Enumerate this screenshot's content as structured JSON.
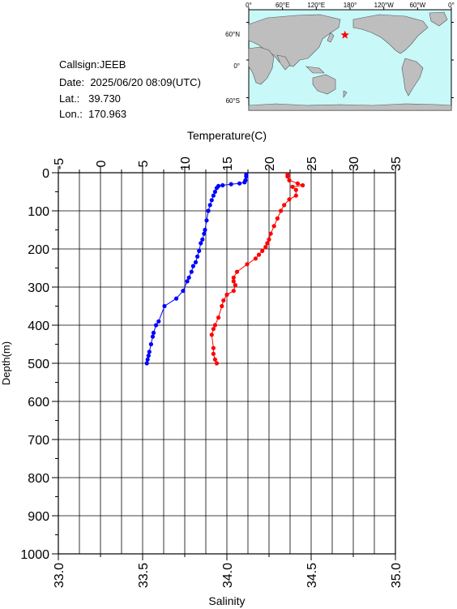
{
  "station": {
    "callsign_label": "Callsign:",
    "callsign": "JEEB",
    "date_label": "Date:",
    "date": "2025/06/20 08:09(UTC)",
    "lat_label": "Lat.:",
    "lat": "39.730",
    "lon_label": "Lon.:",
    "lon": "170.963"
  },
  "map": {
    "top_labels": [
      "0°",
      "60°E",
      "120°E",
      "180°",
      "120°W",
      "60°W",
      "0°"
    ],
    "left_labels": [
      "60°N",
      "0°",
      "60°S"
    ],
    "ocean_color": "#c8f8f8",
    "land_color": "#bebebe",
    "marker": "star",
    "marker_color": "#ff0000",
    "marker_lon": 170.963,
    "marker_lat": 39.73
  },
  "chart_data": {
    "type": "line",
    "ylabel": "Depth(m)",
    "ylim": [
      0,
      1000
    ],
    "yticks": [
      "0",
      "100",
      "200",
      "300",
      "400",
      "500",
      "600",
      "700",
      "800",
      "900",
      "1000"
    ],
    "x_top_label": "Temperature(C)",
    "x_top_lim": [
      -5,
      35
    ],
    "x_top_ticks": [
      "-5",
      "0",
      "5",
      "10",
      "15",
      "20",
      "25",
      "30",
      "35"
    ],
    "x_bottom_label": "Salinity",
    "x_bottom_lim": [
      33.0,
      35.0
    ],
    "x_bottom_ticks": [
      "33.0",
      "33.5",
      "34.0",
      "34.5",
      "35.0"
    ],
    "grid": true,
    "series": [
      {
        "axis": "temperature",
        "color": "#0000ff",
        "points": [
          [
            17.3,
            5
          ],
          [
            17.3,
            10
          ],
          [
            17.2,
            20
          ],
          [
            17.1,
            25
          ],
          [
            16.5,
            28
          ],
          [
            15.5,
            30
          ],
          [
            14.5,
            33
          ],
          [
            14.0,
            35
          ],
          [
            13.8,
            40
          ],
          [
            13.6,
            50
          ],
          [
            13.4,
            60
          ],
          [
            13.2,
            72
          ],
          [
            13.0,
            85
          ],
          [
            12.8,
            100
          ],
          [
            12.6,
            125
          ],
          [
            12.4,
            150
          ],
          [
            12.3,
            160
          ],
          [
            12.1,
            175
          ],
          [
            11.9,
            185
          ],
          [
            11.7,
            205
          ],
          [
            11.5,
            220
          ],
          [
            11.3,
            235
          ],
          [
            11.0,
            245
          ],
          [
            10.8,
            260
          ],
          [
            10.5,
            275
          ],
          [
            10.3,
            285
          ],
          [
            9.8,
            310
          ],
          [
            9.0,
            330
          ],
          [
            7.6,
            350
          ],
          [
            6.9,
            390
          ],
          [
            6.6,
            400
          ],
          [
            6.3,
            420
          ],
          [
            6.2,
            430
          ],
          [
            6.0,
            450
          ],
          [
            5.8,
            470
          ],
          [
            5.7,
            480
          ],
          [
            5.6,
            490
          ],
          [
            5.5,
            500
          ]
        ]
      },
      {
        "axis": "salinity",
        "color": "#ff0000",
        "points": [
          [
            34.36,
            5
          ],
          [
            34.36,
            10
          ],
          [
            34.37,
            20
          ],
          [
            34.42,
            28
          ],
          [
            34.45,
            33
          ],
          [
            34.39,
            37
          ],
          [
            34.41,
            45
          ],
          [
            34.41,
            60
          ],
          [
            34.37,
            70
          ],
          [
            34.34,
            85
          ],
          [
            34.32,
            100
          ],
          [
            34.3,
            120
          ],
          [
            34.28,
            140
          ],
          [
            34.26,
            160
          ],
          [
            34.25,
            175
          ],
          [
            34.24,
            185
          ],
          [
            34.23,
            195
          ],
          [
            34.21,
            205
          ],
          [
            34.19,
            215
          ],
          [
            34.17,
            225
          ],
          [
            34.12,
            240
          ],
          [
            34.06,
            260
          ],
          [
            34.04,
            275
          ],
          [
            34.04,
            285
          ],
          [
            34.05,
            295
          ],
          [
            34.04,
            310
          ],
          [
            34.0,
            320
          ],
          [
            33.98,
            335
          ],
          [
            33.97,
            350
          ],
          [
            33.95,
            380
          ],
          [
            33.93,
            400
          ],
          [
            33.92,
            410
          ],
          [
            33.91,
            425
          ],
          [
            33.92,
            460
          ],
          [
            33.92,
            475
          ],
          [
            33.93,
            490
          ],
          [
            33.94,
            500
          ]
        ]
      }
    ]
  }
}
